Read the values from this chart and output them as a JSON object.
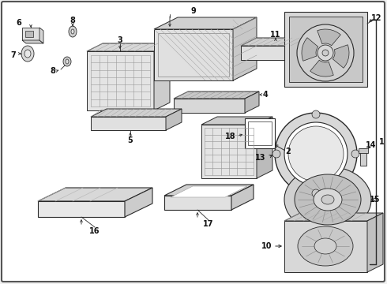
{
  "bg": "#f0f0f0",
  "white": "#ffffff",
  "lc": "#2a2a2a",
  "lc_light": "#666666",
  "text_color": "#111111",
  "fig_width": 4.9,
  "fig_height": 3.6,
  "dpi": 100
}
